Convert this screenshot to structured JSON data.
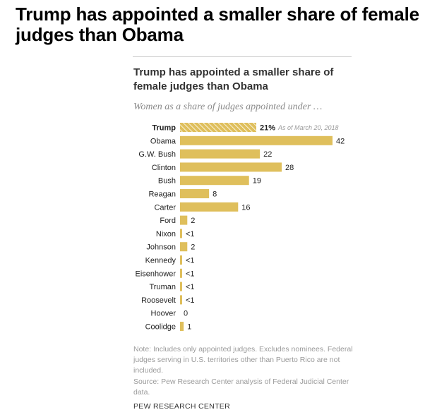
{
  "headline": "Trump has appointed a smaller share of female judges than Obama",
  "chart_title": "Trump has appointed a smaller share of female judges than Obama",
  "chart_subtitle": "Women as a share of judges appointed under …",
  "notes": {
    "note": "Note: Includes only appointed judges. Excludes nominees. Federal judges serving in U.S. territories other than Puerto Rico are not included.",
    "source": "Source: Pew Research Center analysis of Federal Judicial Center data."
  },
  "footer": "PEW RESEARCH CENTER",
  "colors": {
    "bar": "#dfbf5c",
    "hatch_line": "#ffffff",
    "label": "#222222"
  },
  "chart_data": {
    "type": "bar",
    "orientation": "horizontal",
    "title": "Trump has appointed a smaller share of female judges than Obama",
    "subtitle": "Women as a share of judges appointed under …",
    "unit": "%",
    "xlim": [
      0,
      42
    ],
    "categories": [
      "Trump",
      "Obama",
      "G.W. Bush",
      "Clinton",
      "Bush",
      "Reagan",
      "Carter",
      "Ford",
      "Nixon",
      "Johnson",
      "Kennedy",
      "Eisenhower",
      "Truman",
      "Roosevelt",
      "Hoover",
      "Coolidge"
    ],
    "values": [
      21,
      42,
      22,
      28,
      19,
      8,
      16,
      2,
      0.5,
      2,
      0.5,
      0.5,
      0.5,
      0.5,
      0,
      1
    ],
    "labels": [
      "21%",
      "42",
      "22",
      "28",
      "19",
      "8",
      "16",
      "2",
      "<1",
      "2",
      "<1",
      "<1",
      "<1",
      "<1",
      "0",
      "1"
    ],
    "highlight": "Trump",
    "annotation": "As of March 20, 2018"
  }
}
